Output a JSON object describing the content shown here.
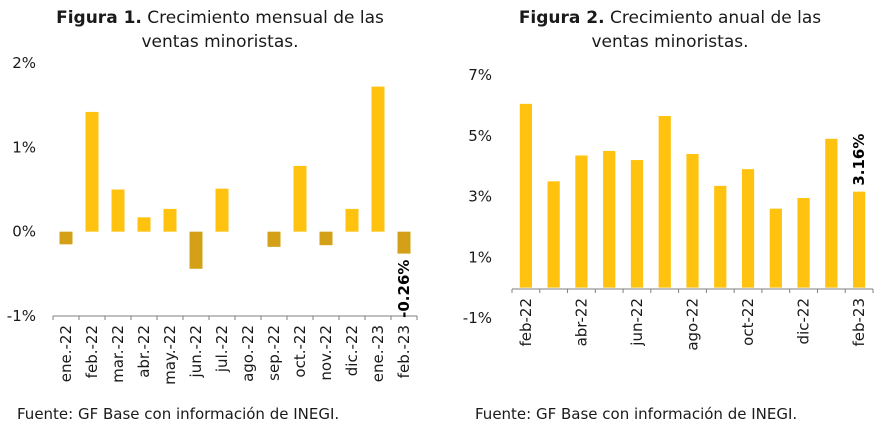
{
  "colors": {
    "positive": "#FFC20E",
    "negative": "#D4A017",
    "axis": "#7f7f7f"
  },
  "fig1": {
    "title_bold": "Figura 1.",
    "title_rest": " Crecimiento mensual de las ventas minoristas.",
    "source": "Fuente: GF Base con información de INEGI."
  },
  "fig2": {
    "title_bold": "Figura 2.",
    "title_rest": " Crecimiento anual de las ventas minoristas.",
    "source": "Fuente: GF Base con información de INEGI."
  },
  "chart_data": [
    {
      "type": "bar",
      "title": "Figura 1. Crecimiento mensual de las ventas minoristas.",
      "categories": [
        "ene.-22",
        "feb.-22",
        "mar.-22",
        "abr.-22",
        "may.-22",
        "jun.-22",
        "jul.-22",
        "ago.-22",
        "sep.-22",
        "oct.-22",
        "nov.-22",
        "dic.-22",
        "ene.-23",
        "feb.-23"
      ],
      "values": [
        -0.15,
        1.42,
        0.5,
        0.17,
        0.27,
        -0.44,
        0.51,
        0.0,
        -0.18,
        0.78,
        -0.16,
        0.27,
        1.72,
        -0.26
      ],
      "ylim": [
        -1,
        2
      ],
      "yticks": [
        -1,
        0,
        1,
        2
      ],
      "ytick_labels": [
        "-1%",
        "0%",
        "1%",
        "2%"
      ],
      "data_labels": [
        {
          "index": 13,
          "text": "-0.26%"
        }
      ],
      "grid": false
    },
    {
      "type": "bar",
      "title": "Figura 2. Crecimiento anual de las ventas minoristas.",
      "categories": [
        "feb-22",
        "mar-22",
        "abr-22",
        "may-22",
        "jun-22",
        "jul-22",
        "ago-22",
        "sep-22",
        "oct-22",
        "nov-22",
        "dic-22",
        "ene-23",
        "feb-23"
      ],
      "shown_tick_labels": [
        "feb-22",
        "abr-22",
        "jun-22",
        "ago-22",
        "oct-22",
        "dic-22",
        "feb-23"
      ],
      "values": [
        6.05,
        3.5,
        4.35,
        4.5,
        4.2,
        5.65,
        4.4,
        3.35,
        3.9,
        2.6,
        2.95,
        4.9,
        3.16
      ],
      "ylim": [
        -1,
        7
      ],
      "yticks": [
        -1,
        1,
        3,
        5,
        7
      ],
      "ytick_labels": [
        "-1%",
        "1%",
        "3%",
        "5%",
        "7%"
      ],
      "data_labels": [
        {
          "index": 12,
          "text": "3.16%"
        }
      ],
      "grid": false
    }
  ]
}
